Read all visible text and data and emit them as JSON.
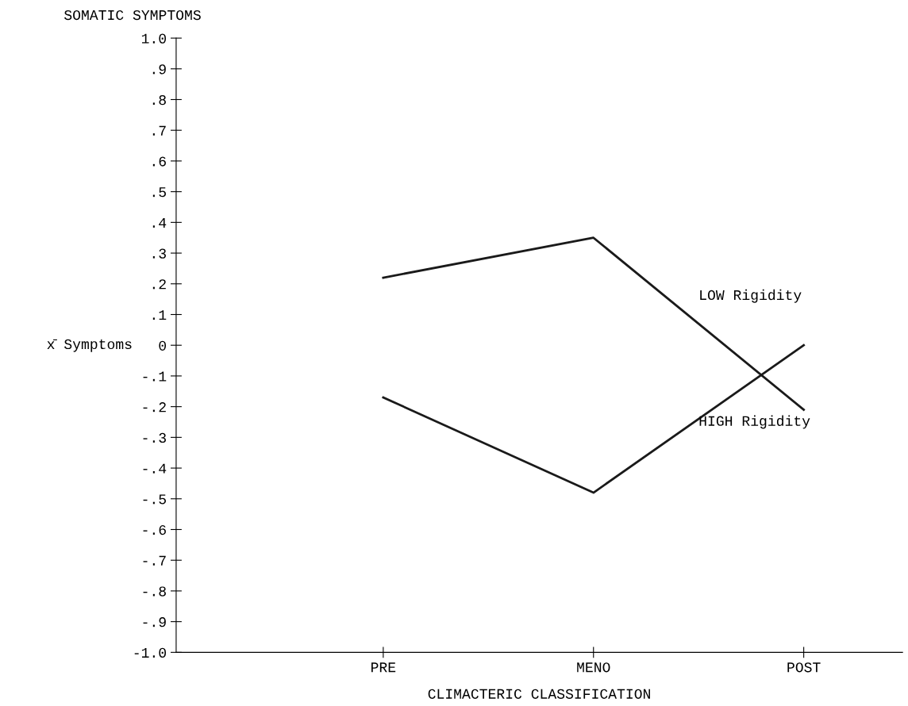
{
  "chart_data": {
    "type": "line",
    "title": "SOMATIC SYMPTOMS",
    "xlabel": "CLIMACTERIC CLASSIFICATION",
    "ylabel": "x̄ Symptoms",
    "categories": [
      "PRE",
      "MENO",
      "POST"
    ],
    "series": [
      {
        "name": "LOW Rigidity",
        "color": "#1a1a1a",
        "values": [
          0.22,
          0.35,
          -0.21
        ]
      },
      {
        "name": "HIGH Rigidity",
        "color": "#1a1a1a",
        "values": [
          -0.17,
          -0.48,
          0.0
        ]
      }
    ],
    "ylim": [
      -1.0,
      1.0
    ],
    "yticks": [
      {
        "value": 1.0,
        "label": "1.0"
      },
      {
        "value": 0.9,
        "label": ".9"
      },
      {
        "value": 0.8,
        "label": ".8"
      },
      {
        "value": 0.7,
        "label": ".7"
      },
      {
        "value": 0.6,
        "label": ".6"
      },
      {
        "value": 0.5,
        "label": ".5"
      },
      {
        "value": 0.4,
        "label": ".4"
      },
      {
        "value": 0.3,
        "label": ".3"
      },
      {
        "value": 0.2,
        "label": ".2"
      },
      {
        "value": 0.1,
        "label": ".1"
      },
      0,
      {
        "value": -0.1,
        "label": "-.1"
      },
      {
        "value": -0.2,
        "label": "-.2"
      },
      {
        "value": -0.3,
        "label": "-.3"
      },
      {
        "value": -0.4,
        "label": "-.4"
      },
      {
        "value": -0.5,
        "label": "-.5"
      },
      {
        "value": -0.6,
        "label": "-.6"
      },
      {
        "value": -0.7,
        "label": "-.7"
      },
      {
        "value": -0.8,
        "label": "-.8"
      },
      {
        "value": -0.9,
        "label": "-.9"
      },
      {
        "value": -1.0,
        "label": "-1.0"
      }
    ],
    "grid": false,
    "legend": false,
    "marker": "none",
    "line_style": "solid"
  }
}
